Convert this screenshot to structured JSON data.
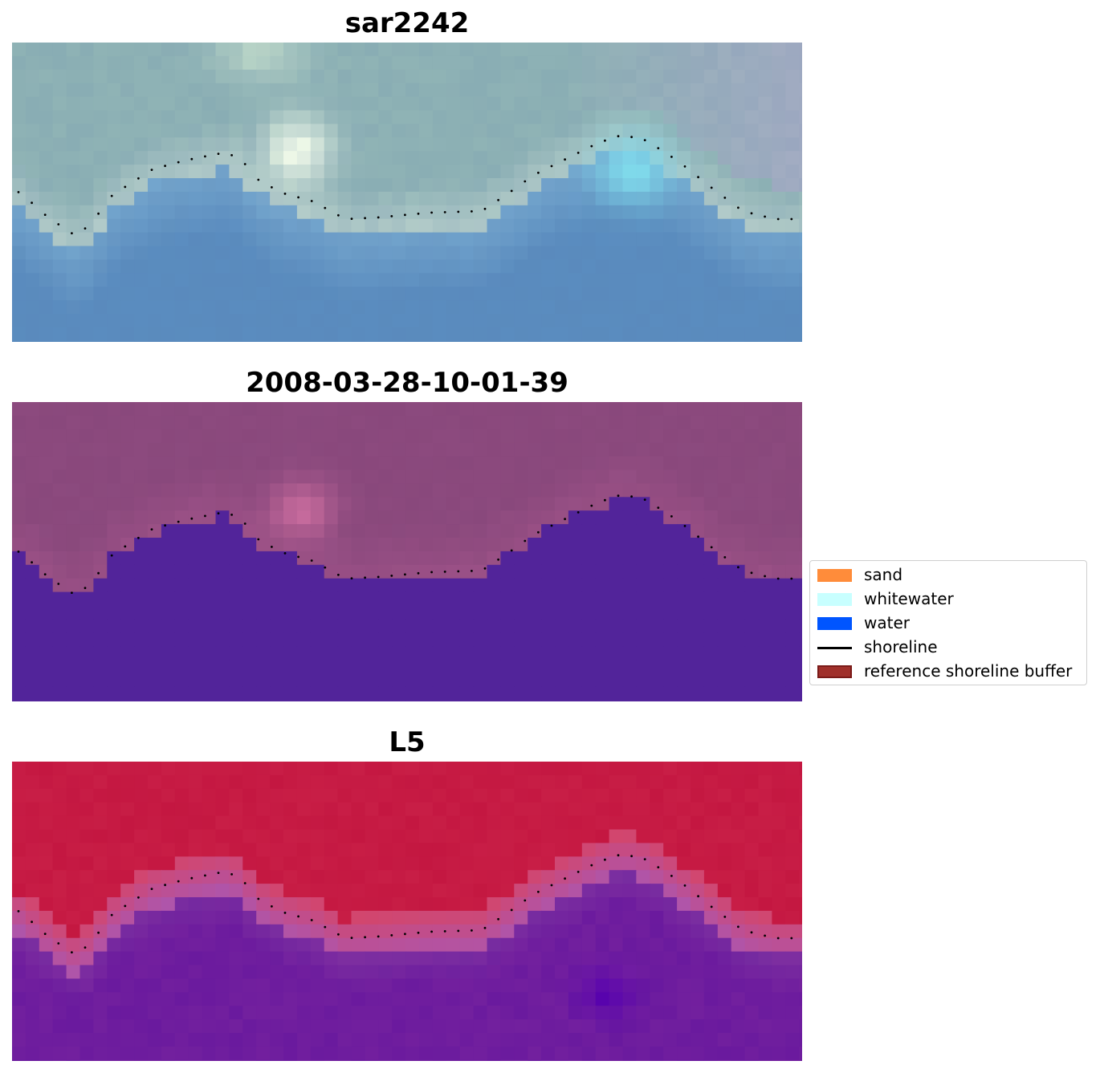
{
  "panels": [
    {
      "title": "sar2242"
    },
    {
      "title": "2008-03-28-10-01-39"
    },
    {
      "title": "L5"
    }
  ],
  "legend": {
    "items": [
      {
        "label": "sand",
        "color": "#ff8c3a",
        "kind": "patch"
      },
      {
        "label": "whitewater",
        "color": "#c8ffff",
        "kind": "patch"
      },
      {
        "label": "water",
        "color": "#0055ff",
        "kind": "patch"
      },
      {
        "label": "shoreline",
        "color": "#000000",
        "kind": "line"
      },
      {
        "label": "reference shoreline buffer",
        "color": "#a0302b",
        "kind": "patch-bordered"
      }
    ]
  },
  "colors": {
    "panel1_sea": "#5a8cbf",
    "panel1_land": "#8fb3b5",
    "panel2_water": "#52249a",
    "panel2_land": "#8c4a7e",
    "panel3_land": "#c0103c",
    "panel3_water": "#6a1a9e",
    "shoreline": "#000000"
  }
}
